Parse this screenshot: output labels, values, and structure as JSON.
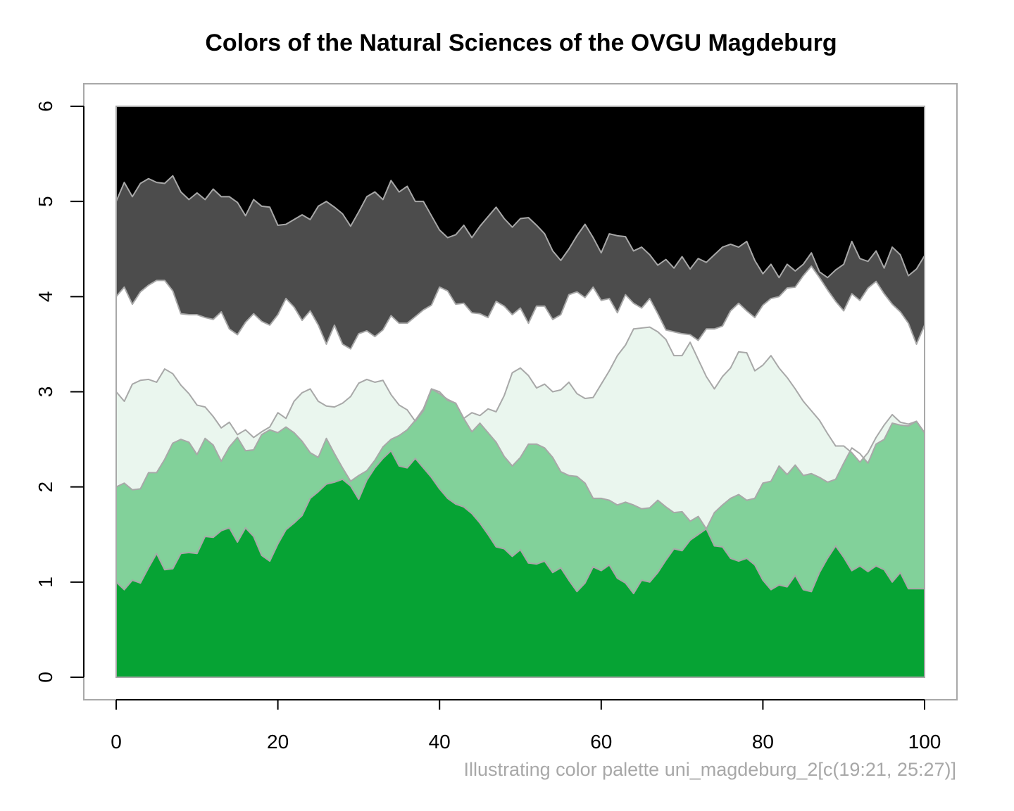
{
  "chart_data": {
    "type": "area",
    "title": "Colors of the Natural Sciences of the OVGU Magdeburg",
    "caption": "Illustrating color palette uni_magdeburg_2[c(19:21, 25:27)]",
    "xlabel": "",
    "ylabel": "",
    "xlim": [
      0,
      100
    ],
    "ylim": [
      0,
      6
    ],
    "x_ticks": [
      0,
      20,
      40,
      60,
      80,
      100
    ],
    "y_ticks": [
      0,
      1,
      2,
      3,
      4,
      5,
      6
    ],
    "boundary_color": "#a8a8a8",
    "band_colors": [
      "#06a334",
      "#82d19a",
      "#eaf6ee",
      "#ffffff",
      "#4c4c4c",
      "#000000"
    ],
    "x": [
      0,
      1,
      2,
      3,
      4,
      5,
      6,
      7,
      8,
      9,
      10,
      11,
      12,
      13,
      14,
      15,
      16,
      17,
      18,
      19,
      20,
      21,
      22,
      23,
      24,
      25,
      26,
      27,
      28,
      29,
      30,
      31,
      32,
      33,
      34,
      35,
      36,
      37,
      38,
      39,
      40,
      41,
      42,
      43,
      44,
      45,
      46,
      47,
      48,
      49,
      50,
      51,
      52,
      53,
      54,
      55,
      56,
      57,
      58,
      59,
      60,
      61,
      62,
      63,
      64,
      65,
      66,
      67,
      68,
      69,
      70,
      71,
      72,
      73,
      74,
      75,
      76,
      77,
      78,
      79,
      80,
      81,
      82,
      83,
      84,
      85,
      86,
      87,
      88,
      89,
      90,
      91,
      92,
      93,
      94,
      95,
      96,
      97,
      98,
      99,
      100
    ],
    "boundaries": [
      {
        "name": "b1",
        "values": [
          1.0,
          0.92,
          1.02,
          0.99,
          1.15,
          1.3,
          1.13,
          1.14,
          1.3,
          1.31,
          1.3,
          1.48,
          1.47,
          1.54,
          1.57,
          1.42,
          1.57,
          1.48,
          1.28,
          1.22,
          1.4,
          1.55,
          1.62,
          1.7,
          1.88,
          1.95,
          2.03,
          2.05,
          2.08,
          2.01,
          1.87,
          2.07,
          2.2,
          2.3,
          2.38,
          2.22,
          2.2,
          2.3,
          2.2,
          2.1,
          1.98,
          1.88,
          1.82,
          1.79,
          1.72,
          1.62,
          1.5,
          1.37,
          1.35,
          1.27,
          1.34,
          1.2,
          1.19,
          1.22,
          1.1,
          1.15,
          1.02,
          0.9,
          0.99,
          1.16,
          1.12,
          1.18,
          1.04,
          0.99,
          0.88,
          1.02,
          1.0,
          1.1,
          1.23,
          1.35,
          1.33,
          1.44,
          1.5,
          1.56,
          1.38,
          1.37,
          1.25,
          1.22,
          1.25,
          1.18,
          1.02,
          0.92,
          0.97,
          0.95,
          1.07,
          0.92,
          0.9,
          1.1,
          1.25,
          1.38,
          1.26,
          1.12,
          1.17,
          1.11,
          1.17,
          1.13,
          1.0,
          1.1,
          0.93,
          0.93,
          0.93
        ]
      },
      {
        "name": "b2",
        "values": [
          2.0,
          2.04,
          1.97,
          1.98,
          2.15,
          2.15,
          2.29,
          2.46,
          2.5,
          2.47,
          2.34,
          2.51,
          2.44,
          2.27,
          2.42,
          2.52,
          2.38,
          2.39,
          2.55,
          2.6,
          2.57,
          2.63,
          2.57,
          2.48,
          2.36,
          2.31,
          2.51,
          2.35,
          2.2,
          2.06,
          2.12,
          2.17,
          2.28,
          2.42,
          2.5,
          2.54,
          2.6,
          2.7,
          2.82,
          3.03,
          3.0,
          2.91,
          2.88,
          2.72,
          2.58,
          2.67,
          2.57,
          2.47,
          2.32,
          2.22,
          2.31,
          2.45,
          2.45,
          2.41,
          2.31,
          2.16,
          2.12,
          2.11,
          2.04,
          1.88,
          1.88,
          1.86,
          1.81,
          1.84,
          1.81,
          1.77,
          1.78,
          1.86,
          1.79,
          1.73,
          1.74,
          1.64,
          1.69,
          1.56,
          1.73,
          1.81,
          1.88,
          1.92,
          1.86,
          1.88,
          2.04,
          2.06,
          2.22,
          2.13,
          2.23,
          2.12,
          2.14,
          2.1,
          2.05,
          2.08,
          2.25,
          2.41,
          2.35,
          2.25,
          2.45,
          2.5,
          2.67,
          2.65,
          2.64,
          2.69,
          2.57
        ]
      },
      {
        "name": "b3",
        "values": [
          3.0,
          2.9,
          3.08,
          3.12,
          3.13,
          3.1,
          3.24,
          3.19,
          3.07,
          2.98,
          2.86,
          2.84,
          2.74,
          2.62,
          2.68,
          2.55,
          2.6,
          2.52,
          2.58,
          2.63,
          2.78,
          2.72,
          2.9,
          2.99,
          3.03,
          2.9,
          2.85,
          2.84,
          2.88,
          2.95,
          3.09,
          3.13,
          3.1,
          3.12,
          2.97,
          2.86,
          2.81,
          2.69,
          2.8,
          3.03,
          2.98,
          2.92,
          2.88,
          2.72,
          2.78,
          2.75,
          2.82,
          2.79,
          2.96,
          3.2,
          3.25,
          3.17,
          3.04,
          3.08,
          3.0,
          3.02,
          3.1,
          2.98,
          2.93,
          2.94,
          3.08,
          3.22,
          3.38,
          3.49,
          3.66,
          3.67,
          3.68,
          3.63,
          3.55,
          3.38,
          3.38,
          3.52,
          3.34,
          3.16,
          3.03,
          3.16,
          3.25,
          3.42,
          3.41,
          3.22,
          3.28,
          3.38,
          3.25,
          3.15,
          3.03,
          2.9,
          2.8,
          2.7,
          2.56,
          2.43,
          2.43,
          2.36,
          2.26,
          2.36,
          2.52,
          2.65,
          2.76,
          2.68,
          2.66,
          2.69,
          2.57
        ]
      },
      {
        "name": "b4",
        "values": [
          4.0,
          4.1,
          3.92,
          4.05,
          4.12,
          4.17,
          4.17,
          4.06,
          3.82,
          3.81,
          3.81,
          3.78,
          3.76,
          3.84,
          3.66,
          3.6,
          3.73,
          3.82,
          3.74,
          3.7,
          3.81,
          3.98,
          3.89,
          3.75,
          3.85,
          3.7,
          3.5,
          3.7,
          3.5,
          3.45,
          3.61,
          3.64,
          3.58,
          3.65,
          3.8,
          3.72,
          3.72,
          3.79,
          3.86,
          3.91,
          4.1,
          4.06,
          3.92,
          3.93,
          3.83,
          3.82,
          3.78,
          3.95,
          3.9,
          3.81,
          3.88,
          3.72,
          3.9,
          3.9,
          3.76,
          3.81,
          4.02,
          4.05,
          3.99,
          4.1,
          3.96,
          3.98,
          3.83,
          4.02,
          3.93,
          3.88,
          3.98,
          3.82,
          3.65,
          3.63,
          3.61,
          3.6,
          3.54,
          3.66,
          3.66,
          3.69,
          3.85,
          3.93,
          3.85,
          3.78,
          3.91,
          3.98,
          4.0,
          4.09,
          4.1,
          4.22,
          4.32,
          4.2,
          4.07,
          3.95,
          3.85,
          4.03,
          3.96,
          4.09,
          4.16,
          4.03,
          3.92,
          3.84,
          3.72,
          3.5,
          3.7
        ]
      },
      {
        "name": "b5",
        "values": [
          5.0,
          5.2,
          5.05,
          5.19,
          5.24,
          5.2,
          5.19,
          5.27,
          5.1,
          5.02,
          5.09,
          5.02,
          5.13,
          5.05,
          5.05,
          4.99,
          4.85,
          5.02,
          4.95,
          4.94,
          4.75,
          4.76,
          4.81,
          4.86,
          4.81,
          4.95,
          5.0,
          4.94,
          4.87,
          4.74,
          4.89,
          5.05,
          5.1,
          5.02,
          5.22,
          5.1,
          5.16,
          5.0,
          5.0,
          4.85,
          4.7,
          4.62,
          4.65,
          4.75,
          4.62,
          4.74,
          4.84,
          4.94,
          4.82,
          4.73,
          4.82,
          4.83,
          4.75,
          4.66,
          4.48,
          4.38,
          4.5,
          4.64,
          4.76,
          4.62,
          4.46,
          4.66,
          4.64,
          4.63,
          4.48,
          4.52,
          4.44,
          4.33,
          4.39,
          4.3,
          4.42,
          4.29,
          4.4,
          4.36,
          4.44,
          4.52,
          4.55,
          4.52,
          4.58,
          4.38,
          4.24,
          4.34,
          4.2,
          4.34,
          4.27,
          4.34,
          4.46,
          4.26,
          4.2,
          4.28,
          4.34,
          4.58,
          4.4,
          4.37,
          4.48,
          4.3,
          4.52,
          4.44,
          4.22,
          4.29,
          4.43
        ]
      }
    ]
  }
}
